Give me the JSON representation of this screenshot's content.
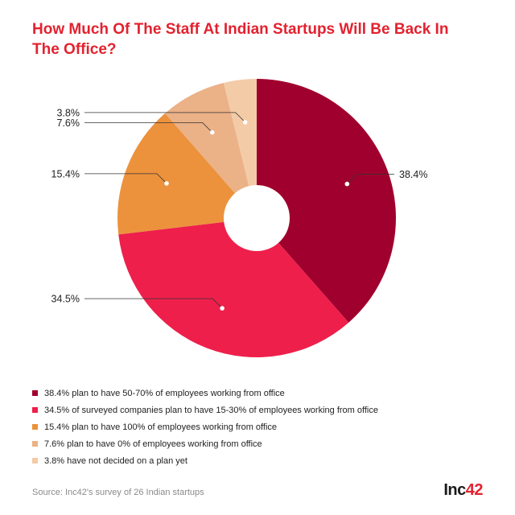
{
  "title": "How Much Of The Staff At Indian Startups Will Be Back In The Office?",
  "chart_data": {
    "type": "pie",
    "donut": true,
    "slices": [
      {
        "label": "38.4%",
        "value": 38.4,
        "color": "#a0002d",
        "legend": "38.4% plan to have 50-70% of employees working from office"
      },
      {
        "label": "34.5%",
        "value": 34.5,
        "color": "#ee1f4b",
        "legend": "34.5% of surveyed companies plan to have 15-30% of employees working from office"
      },
      {
        "label": "15.4%",
        "value": 15.4,
        "color": "#ec923c",
        "legend": "15.4% plan to have 100% of employees working from office"
      },
      {
        "label": "7.6%",
        "value": 7.6,
        "color": "#ebb187",
        "legend": "7.6% plan to have 0% of employees working from office"
      },
      {
        "label": "3.8%",
        "value": 3.8,
        "color": "#f3cba6",
        "legend": "3.8% have not decided on a plan yet"
      }
    ]
  },
  "source": "Source: Inc42's survey of 26 Indian startups",
  "logo": {
    "main": "Inc",
    "accent": "42"
  }
}
